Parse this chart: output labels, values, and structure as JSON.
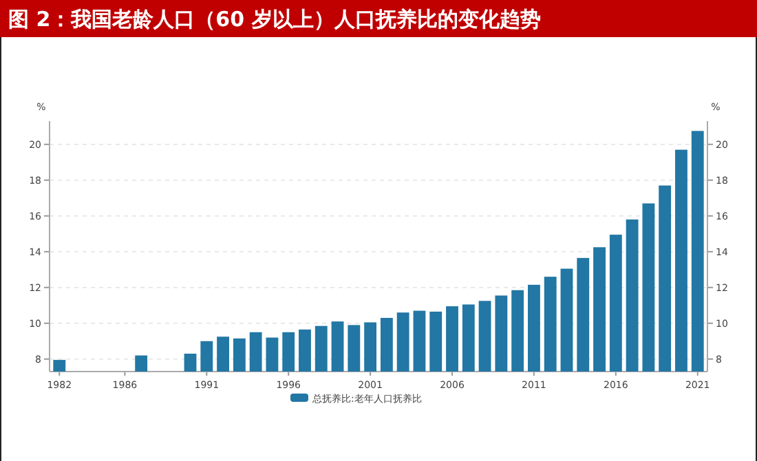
{
  "chart_data": {
    "type": "bar",
    "title": "图 2：我国老龄人口（60 岁以上）人口抚养比的变化趋势",
    "ylabel": "%",
    "y2label": "%",
    "x": [
      1982,
      1987,
      1990,
      1991,
      1992,
      1993,
      1994,
      1995,
      1996,
      1997,
      1998,
      1999,
      2000,
      2001,
      2002,
      2003,
      2004,
      2005,
      2006,
      2007,
      2008,
      2009,
      2010,
      2011,
      2012,
      2013,
      2014,
      2015,
      2016,
      2017,
      2018,
      2019,
      2020,
      2021
    ],
    "series": [
      {
        "name": "总抚养比:老年人口抚养比",
        "color": "#2277a4",
        "values": [
          7.95,
          8.2,
          8.3,
          9.0,
          9.25,
          9.15,
          9.5,
          9.2,
          9.5,
          9.65,
          9.85,
          10.1,
          9.9,
          10.05,
          10.3,
          10.6,
          10.7,
          10.65,
          10.95,
          11.05,
          11.25,
          11.55,
          11.85,
          12.15,
          12.6,
          13.05,
          13.65,
          14.25,
          14.95,
          15.8,
          16.7,
          17.7,
          19.7,
          20.75
        ]
      }
    ],
    "xlim": [
      1981.4,
      2021.6
    ],
    "xticks": [
      1982,
      1986,
      1991,
      1996,
      2001,
      2006,
      2011,
      2016,
      2021
    ],
    "ylim": [
      7.3,
      21.3
    ],
    "yticks": [
      8,
      10,
      12,
      14,
      16,
      18,
      20
    ],
    "y2lim": [
      7.3,
      21.3
    ],
    "y2ticks": [
      8,
      10,
      12,
      14,
      16,
      18,
      20
    ],
    "grid": "y",
    "legend": "bottom"
  }
}
